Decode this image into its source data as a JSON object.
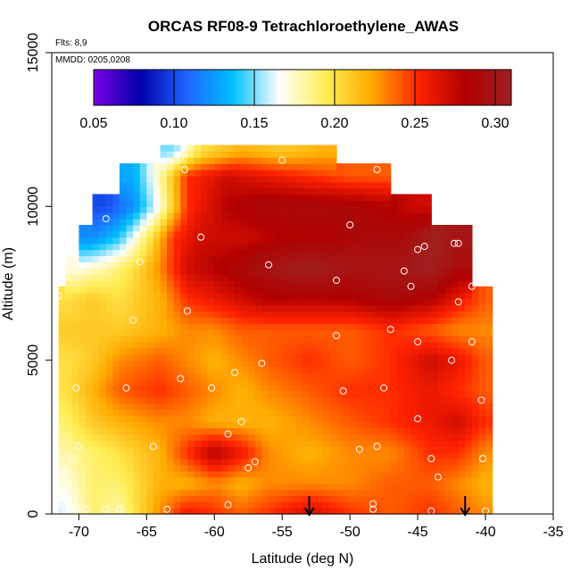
{
  "chart_data": {
    "type": "heatmap",
    "title": "ORCAS RF08-9 Tetrachloroethylene_AWAS",
    "flights_note": "Flts: 8,9",
    "dates_note": "MMDD: 0205,0208",
    "xlabel": "Latitude (deg N)",
    "ylabel": "Altitude (m)",
    "xlim": [
      -72,
      -35
    ],
    "ylim": [
      0,
      15000
    ],
    "x_ticks": [
      -70,
      -65,
      -60,
      -55,
      -50,
      -45,
      -40,
      -35
    ],
    "x_tick_labels": [
      "-70",
      "-65",
      "-60",
      "-55",
      "-50",
      "-45",
      "-40",
      "-35"
    ],
    "y_ticks": [
      0,
      5000,
      10000,
      15000
    ],
    "y_tick_labels": [
      "0",
      "5000",
      "10000",
      "15000"
    ],
    "colorbar": {
      "range": [
        0.05,
        0.31
      ],
      "ticks": [
        0.05,
        0.1,
        0.15,
        0.2,
        0.25,
        0.3
      ],
      "tick_labels": [
        "0.05",
        "0.10",
        "0.15",
        "0.20",
        "0.25",
        "0.30"
      ],
      "colors": [
        "#7a00e6",
        "#0000a8",
        "#1e64ff",
        "#00c0ff",
        "#ffffff",
        "#ffee55",
        "#ffaa00",
        "#ff2200",
        "#b00000",
        "#a02020"
      ]
    },
    "field_rows": [
      {
        "alt": 0,
        "lats": [
          -71,
          -69,
          -67,
          -64,
          -62,
          -60,
          -58,
          -56,
          -53,
          -50,
          -47,
          -44,
          -42,
          -40
        ],
        "values": [
          0.16,
          0.19,
          0.18,
          0.23,
          0.26,
          0.25,
          0.24,
          0.25,
          0.27,
          0.25,
          0.24,
          0.25,
          0.24,
          0.23
        ]
      },
      {
        "alt": 1000,
        "lats": [
          -71,
          -69,
          -67,
          -64,
          -62,
          -60,
          -58,
          -56,
          -53,
          -50,
          -47,
          -44,
          -42,
          -40
        ],
        "values": [
          0.17,
          0.19,
          0.19,
          0.22,
          0.22,
          0.23,
          0.22,
          0.23,
          0.23,
          0.23,
          0.24,
          0.24,
          0.23,
          0.22
        ]
      },
      {
        "alt": 2000,
        "lats": [
          -71,
          -69,
          -67,
          -64,
          -62,
          -60,
          -58,
          -56,
          -53,
          -50,
          -47,
          -44,
          -42,
          -40
        ],
        "values": [
          0.18,
          0.19,
          0.2,
          0.22,
          0.25,
          0.28,
          0.26,
          0.23,
          0.22,
          0.23,
          0.23,
          0.25,
          0.25,
          0.23
        ]
      },
      {
        "alt": 3000,
        "lats": [
          -71,
          -69,
          -67,
          -64,
          -62,
          -60,
          -58,
          -56,
          -53,
          -50,
          -47,
          -44,
          -42,
          -40
        ],
        "values": [
          0.19,
          0.21,
          0.22,
          0.23,
          0.23,
          0.22,
          0.22,
          0.22,
          0.23,
          0.24,
          0.25,
          0.26,
          0.27,
          0.25
        ]
      },
      {
        "alt": 4000,
        "lats": [
          -71,
          -69,
          -67,
          -64,
          -62,
          -60,
          -58,
          -56,
          -53,
          -50,
          -47,
          -44,
          -42,
          -40
        ],
        "values": [
          0.2,
          0.22,
          0.24,
          0.25,
          0.24,
          0.23,
          0.22,
          0.23,
          0.24,
          0.25,
          0.25,
          0.26,
          0.25,
          0.24
        ]
      },
      {
        "alt": 5000,
        "lats": [
          -71,
          -69,
          -67,
          -64,
          -62,
          -60,
          -58,
          -56,
          -53,
          -50,
          -47,
          -44,
          -42,
          -40
        ],
        "values": [
          0.2,
          0.21,
          0.23,
          0.24,
          0.23,
          0.22,
          0.23,
          0.24,
          0.25,
          0.24,
          0.25,
          0.27,
          0.26,
          0.24
        ]
      },
      {
        "alt": 6000,
        "lats": [
          -71,
          -69,
          -67,
          -64,
          -62,
          -60,
          -58,
          -56,
          -53,
          -50,
          -47,
          -44,
          -42,
          -40
        ],
        "values": [
          0.21,
          0.21,
          0.21,
          0.22,
          0.23,
          0.23,
          0.24,
          0.24,
          0.24,
          0.24,
          0.25,
          0.24,
          0.23,
          0.23
        ]
      },
      {
        "alt": 7000,
        "lats": [
          -71,
          -69,
          -67,
          -64,
          -62,
          -60,
          -58,
          -56,
          -53,
          -50,
          -47,
          -44,
          -42,
          -40
        ],
        "values": [
          0.2,
          0.21,
          0.2,
          0.22,
          0.25,
          0.26,
          0.27,
          0.28,
          0.28,
          0.28,
          0.29,
          0.28,
          0.26,
          0.24
        ]
      },
      {
        "alt": 8000,
        "lats": [
          -70,
          -68,
          -66,
          -64,
          -62,
          -60,
          -58,
          -56,
          -53,
          -50,
          -47,
          -44,
          -42
        ],
        "values": [
          0.17,
          0.18,
          0.2,
          0.23,
          0.27,
          0.28,
          0.29,
          0.3,
          0.31,
          0.3,
          0.3,
          0.31,
          0.29
        ]
      },
      {
        "alt": 9000,
        "lats": [
          -69,
          -67,
          -65,
          -63,
          -61,
          -58,
          -55,
          -52,
          -49,
          -46,
          -44,
          -42
        ],
        "values": [
          0.12,
          0.14,
          0.19,
          0.25,
          0.27,
          0.27,
          0.28,
          0.28,
          0.29,
          0.29,
          0.31,
          0.3
        ]
      },
      {
        "alt": 10000,
        "lats": [
          -68,
          -66,
          -64,
          -62,
          -59,
          -56,
          -53,
          -50,
          -47,
          -45
        ],
        "values": [
          0.1,
          0.12,
          0.17,
          0.25,
          0.28,
          0.29,
          0.29,
          0.29,
          0.28,
          0.27
        ]
      },
      {
        "alt": 11000,
        "lats": [
          -66,
          -64,
          -62,
          -59,
          -56,
          -53,
          -50,
          -48
        ],
        "values": [
          0.13,
          0.18,
          0.25,
          0.27,
          0.26,
          0.25,
          0.24,
          0.24
        ]
      },
      {
        "alt": 11800,
        "lats": [
          -63,
          -61,
          -58,
          -55,
          -52
        ],
        "values": [
          0.15,
          0.2,
          0.22,
          0.21,
          0.22
        ]
      }
    ],
    "samples": [
      {
        "lat": -71.0,
        "alt": 150
      },
      {
        "lat": -70.2,
        "alt": 150
      },
      {
        "lat": -69.5,
        "alt": 150
      },
      {
        "lat": -68.0,
        "alt": 150
      },
      {
        "lat": -67.0,
        "alt": 150
      },
      {
        "lat": -63.5,
        "alt": 150
      },
      {
        "lat": -59.0,
        "alt": 300
      },
      {
        "lat": -48.3,
        "alt": 330
      },
      {
        "lat": -48.3,
        "alt": 150
      },
      {
        "lat": -44.0,
        "alt": 100
      },
      {
        "lat": -40.0,
        "alt": 100
      },
      {
        "lat": -71.0,
        "alt": 1400
      },
      {
        "lat": -70.5,
        "alt": 1800
      },
      {
        "lat": -70.0,
        "alt": 2200
      },
      {
        "lat": -57.5,
        "alt": 1500
      },
      {
        "lat": -57.0,
        "alt": 1700
      },
      {
        "lat": -49.3,
        "alt": 2100
      },
      {
        "lat": -48.0,
        "alt": 2200
      },
      {
        "lat": -44.0,
        "alt": 1800
      },
      {
        "lat": -43.5,
        "alt": 1200
      },
      {
        "lat": -40.2,
        "alt": 1800
      },
      {
        "lat": -64.5,
        "alt": 2200
      },
      {
        "lat": -59.0,
        "alt": 2600
      },
      {
        "lat": -58.0,
        "alt": 3000
      },
      {
        "lat": -45.0,
        "alt": 3100
      },
      {
        "lat": -70.2,
        "alt": 4100
      },
      {
        "lat": -66.5,
        "alt": 4100
      },
      {
        "lat": -62.5,
        "alt": 4400
      },
      {
        "lat": -60.2,
        "alt": 4100
      },
      {
        "lat": -50.5,
        "alt": 4000
      },
      {
        "lat": -47.5,
        "alt": 4100
      },
      {
        "lat": -40.3,
        "alt": 3700
      },
      {
        "lat": -58.5,
        "alt": 4600
      },
      {
        "lat": -56.5,
        "alt": 4900
      },
      {
        "lat": -42.5,
        "alt": 5000
      },
      {
        "lat": -45.0,
        "alt": 5600
      },
      {
        "lat": -41.0,
        "alt": 5600
      },
      {
        "lat": -51.0,
        "alt": 5800
      },
      {
        "lat": -47.0,
        "alt": 6000
      },
      {
        "lat": -66.0,
        "alt": 6300
      },
      {
        "lat": -62.0,
        "alt": 6600
      },
      {
        "lat": -71.5,
        "alt": 7100
      },
      {
        "lat": -42.0,
        "alt": 6900
      },
      {
        "lat": -41.0,
        "alt": 7400
      },
      {
        "lat": -51.0,
        "alt": 7600
      },
      {
        "lat": -45.5,
        "alt": 7400
      },
      {
        "lat": -46.0,
        "alt": 7900
      },
      {
        "lat": -65.5,
        "alt": 8200
      },
      {
        "lat": -56.0,
        "alt": 8100
      },
      {
        "lat": -45.0,
        "alt": 8600
      },
      {
        "lat": -44.5,
        "alt": 8700
      },
      {
        "lat": -42.0,
        "alt": 8800
      },
      {
        "lat": -42.3,
        "alt": 8800
      },
      {
        "lat": -61.0,
        "alt": 9000
      },
      {
        "lat": -50.0,
        "alt": 9400
      },
      {
        "lat": -68.0,
        "alt": 9600
      },
      {
        "lat": -62.5,
        "alt": 11600
      },
      {
        "lat": -62.2,
        "alt": 11200
      },
      {
        "lat": -55.0,
        "alt": 11500
      },
      {
        "lat": -48.0,
        "alt": 11200
      }
    ],
    "arrows": [
      {
        "lat": -53.0
      },
      {
        "lat": -41.5
      }
    ]
  }
}
